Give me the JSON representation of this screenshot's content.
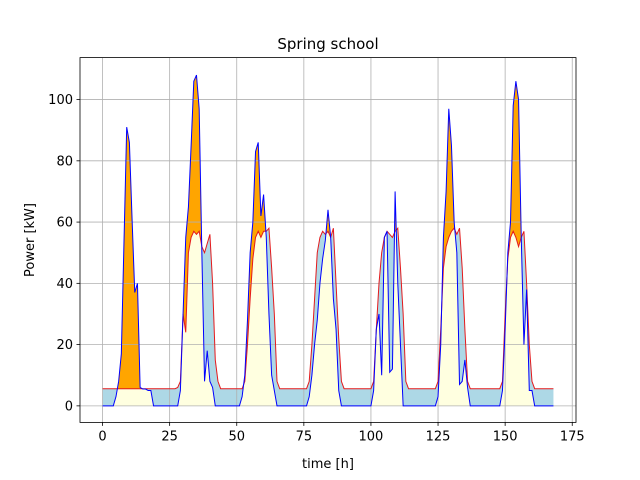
{
  "chart_data": {
    "type": "line",
    "title": "Spring school",
    "x_label": "time [h]",
    "y_label": "Power [kW]",
    "x": [
      0,
      1,
      2,
      3,
      4,
      5,
      6,
      7,
      8,
      9,
      10,
      11,
      12,
      13,
      14,
      15,
      16,
      17,
      18,
      19,
      20,
      21,
      22,
      23,
      24,
      25,
      26,
      27,
      28,
      29,
      30,
      31,
      32,
      33,
      34,
      35,
      36,
      37,
      38,
      39,
      40,
      41,
      42,
      43,
      44,
      45,
      46,
      47,
      48,
      49,
      50,
      51,
      52,
      53,
      54,
      55,
      56,
      57,
      58,
      59,
      60,
      61,
      62,
      63,
      64,
      65,
      66,
      67,
      68,
      69,
      70,
      71,
      72,
      73,
      74,
      75,
      76,
      77,
      78,
      79,
      80,
      81,
      82,
      83,
      84,
      85,
      86,
      87,
      88,
      89,
      90,
      91,
      92,
      93,
      94,
      95,
      96,
      97,
      98,
      99,
      100,
      101,
      102,
      103,
      104,
      105,
      106,
      107,
      108,
      109,
      110,
      111,
      112,
      113,
      114,
      115,
      116,
      117,
      118,
      119,
      120,
      121,
      122,
      123,
      124,
      125,
      126,
      127,
      128,
      129,
      130,
      131,
      132,
      133,
      134,
      135,
      136,
      137,
      138,
      139,
      140,
      141,
      142,
      143,
      144,
      145,
      146,
      147,
      148,
      149,
      150,
      151,
      152,
      153,
      154,
      155,
      156,
      157,
      158,
      159,
      160,
      161,
      162,
      163,
      164,
      165,
      166,
      167,
      168
    ],
    "series": [
      {
        "color": "#0000ff",
        "values": [
          0,
          0,
          0,
          0,
          0,
          3,
          8,
          17,
          54,
          91,
          86,
          61,
          37,
          40,
          6,
          5.5,
          5.5,
          5,
          5,
          0,
          0,
          0,
          0,
          0,
          0,
          0,
          0,
          0,
          0,
          5,
          30,
          55,
          65,
          85,
          106,
          108,
          97,
          50,
          8,
          18,
          8,
          6,
          0,
          0,
          0,
          0,
          0,
          0,
          0,
          0,
          0,
          0,
          3,
          10,
          28,
          50,
          60,
          83,
          86,
          62,
          69,
          55,
          30,
          10,
          5,
          0,
          0,
          0,
          0,
          0,
          0,
          0,
          0,
          0,
          0,
          0,
          0,
          3,
          10,
          20,
          28,
          40,
          48,
          54,
          64,
          55,
          35,
          25,
          5,
          0,
          0,
          0,
          0,
          0,
          0,
          0,
          0,
          0,
          0,
          0,
          0,
          5,
          25,
          30,
          10,
          55,
          57,
          11,
          12,
          70,
          40,
          20,
          0,
          0,
          0,
          0,
          0,
          0,
          0,
          0,
          0,
          0,
          0,
          0,
          0,
          3,
          20,
          55,
          70,
          97,
          85,
          60,
          50,
          7,
          8,
          15,
          6,
          0,
          0,
          0,
          0,
          0,
          0,
          0,
          0,
          0,
          0,
          0,
          0,
          5,
          25,
          50,
          60,
          98,
          106,
          100,
          55,
          20,
          38,
          5,
          5,
          0,
          0,
          0,
          0,
          0,
          0,
          0,
          0
        ]
      },
      {
        "color": "#e41a1c",
        "values": [
          5.6,
          5.6,
          5.6,
          5.6,
          5.6,
          5.6,
          5.6,
          5.6,
          5.6,
          5.6,
          5.6,
          5.6,
          5.6,
          5.6,
          5.6,
          5.6,
          5.6,
          5.6,
          5.6,
          5.6,
          5.6,
          5.6,
          5.6,
          5.6,
          5.6,
          5.6,
          5.6,
          5.6,
          6,
          8,
          30,
          24,
          50,
          55,
          57,
          56,
          57,
          52,
          50,
          53,
          56,
          40,
          15,
          8,
          5.6,
          5.6,
          5.6,
          5.6,
          5.6,
          5.6,
          5.6,
          5.6,
          5.6,
          8,
          20,
          35,
          48,
          55,
          57,
          55,
          57,
          57,
          58,
          45,
          30,
          8,
          5.6,
          5.6,
          5.6,
          5.6,
          5.6,
          5.6,
          5.6,
          5.6,
          5.6,
          5.6,
          5.6,
          8,
          20,
          35,
          50,
          55,
          57,
          56,
          57,
          55,
          58,
          40,
          22,
          8,
          5.6,
          5.6,
          5.6,
          5.6,
          5.6,
          5.6,
          5.6,
          5.6,
          5.6,
          5.6,
          5.6,
          8,
          25,
          40,
          50,
          55,
          57,
          56,
          55,
          57,
          58,
          45,
          30,
          8,
          5.6,
          5.6,
          5.6,
          5.6,
          5.6,
          5.6,
          5.6,
          5.6,
          5.6,
          5.6,
          5.6,
          8,
          25,
          45,
          52,
          55,
          57,
          58,
          56,
          58,
          45,
          25,
          8,
          5.6,
          5.6,
          5.6,
          5.6,
          5.6,
          5.6,
          5.6,
          5.6,
          5.6,
          5.6,
          5.6,
          5.6,
          8,
          30,
          48,
          55,
          57,
          55,
          52,
          55,
          57,
          40,
          20,
          8,
          5.6,
          5.6,
          5.6,
          5.6,
          5.6,
          5.6,
          5.6,
          5.6
        ]
      }
    ],
    "fill_colors": {
      "above": "#ffa500",
      "below": "#add8e6",
      "base": "#ffffe0"
    },
    "xlim": [
      -8.4,
      176.4
    ],
    "xticks": [
      0,
      25,
      50,
      75,
      100,
      125,
      150,
      175
    ],
    "ylim": [
      -5.4,
      113.7
    ],
    "yticks": [
      0,
      20,
      40,
      60,
      80,
      100
    ],
    "grid": true
  }
}
